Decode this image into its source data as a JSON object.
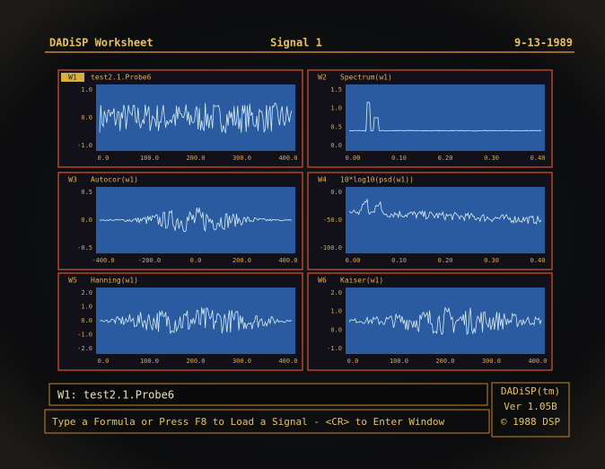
{
  "header": {
    "app": "DADiSP Worksheet",
    "signal": "Signal 1",
    "date": "9-13-1989"
  },
  "windows": [
    {
      "label": "W1",
      "title": "test2.1.Probe6",
      "yticks": [
        "1.0",
        "0.0",
        "-1.0"
      ],
      "xticks": [
        "0.0",
        "100.0",
        "200.0",
        "300.0",
        "400.0"
      ]
    },
    {
      "label": "W2",
      "title": "Spectrum(w1)",
      "yticks": [
        "1.5",
        "1.0",
        "0.5",
        "0.0"
      ],
      "xticks": [
        "0.00",
        "0.10",
        "0.20",
        "0.30",
        "0.40"
      ]
    },
    {
      "label": "W3",
      "title": "Autocor(w1)",
      "yticks": [
        "0.5",
        "0.0",
        "-0.5"
      ],
      "xticks": [
        "-400.0",
        "-200.0",
        "0.0",
        "200.0",
        "400.0"
      ]
    },
    {
      "label": "W4",
      "title": "10*log10(psd(w1))",
      "yticks": [
        "0.0",
        "-50.0",
        "-100.0"
      ],
      "xticks": [
        "0.00",
        "0.10",
        "0.20",
        "0.30",
        "0.40"
      ]
    },
    {
      "label": "W5",
      "title": "Hanning(w1)",
      "yticks": [
        "2.0",
        "1.0",
        "0.0",
        "-1.0",
        "-2.0"
      ],
      "xticks": [
        "0.0",
        "100.0",
        "200.0",
        "300.0",
        "400.0"
      ]
    },
    {
      "label": "W6",
      "title": "Kaiser(w1)",
      "yticks": [
        "2.0",
        "1.0",
        "0.0",
        "-1.0"
      ],
      "xticks": [
        "0.0",
        "100.0",
        "200.0",
        "300.0",
        "400.0"
      ]
    }
  ],
  "status": {
    "current": "W1: test2.1.Probe6",
    "prompt": "Type a Formula or Press F8 to Load a Signal - <CR> to Enter Window"
  },
  "about": {
    "name": "DADiSP(tm)",
    "version": "Ver 1.05B",
    "copyright": "© 1988 DSP"
  }
}
